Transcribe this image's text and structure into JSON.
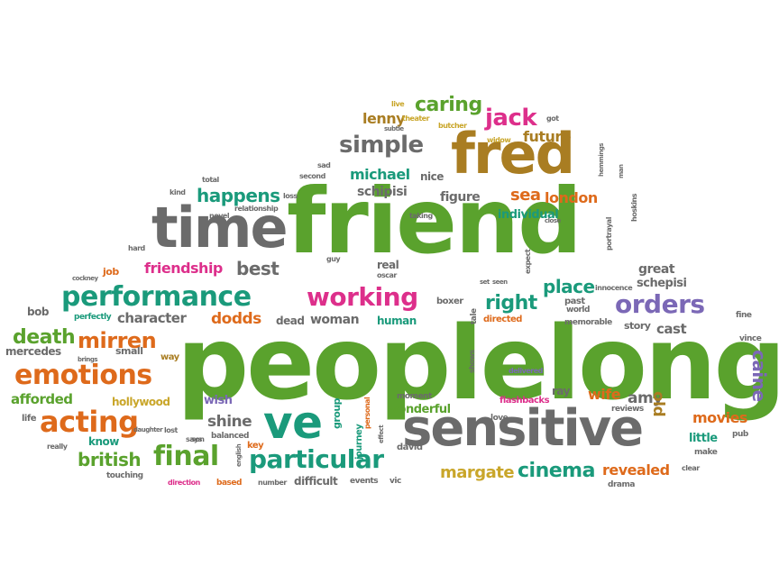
{
  "words": {
    "peoplelong": "peoplelong",
    "friend": "friend",
    "sensitive": "sensitive",
    "time": "time",
    "fred": "fred",
    "ve": "ve",
    "performance": "performance",
    "emotions": "emotions",
    "acting": "acting",
    "working": "working",
    "orders": "orders",
    "final": "final",
    "particular": "particular",
    "simple": "simple",
    "mirren": "mirren",
    "jack": "jack",
    "caring": "caring",
    "caine": "caine",
    "cinema": "cinema",
    "margate": "margate",
    "british": "british",
    "death": "death",
    "mercedes": "mercedes",
    "right": "right",
    "place": "place",
    "michael": "michael",
    "friendship": "friendship",
    "happens": "happens",
    "best": "best",
    "character": "character",
    "dodds": "dodds",
    "woman": "woman",
    "sea": "sea",
    "london": "london",
    "revealed": "revealed",
    "movies": "movies",
    "amy": "amy",
    "wife": "wife",
    "cast": "cast",
    "great": "great",
    "schepisi": "schepisi",
    "schipisi": "schipisi",
    "figure": "figure",
    "individual": "individual",
    "lenny": "lenny",
    "future": "future",
    "shine": "shine",
    "wonderful": "wonderful",
    "afforded": "afforded",
    "hollywood": "hollywood",
    "little": "little",
    "old": "old",
    "difficult": "difficult",
    "human": "human",
    "dead": "dead",
    "wish": "wish",
    "know": "know",
    "real": "real",
    "story": "story",
    "nice": "nice",
    "ray": "ray",
    "bob": "bob",
    "small": "small",
    "perfectly": "perfectly",
    "life": "life",
    "group": "group",
    "journey": "journey",
    "boxer": "boxer",
    "tale": "tale",
    "directed": "directed",
    "past": "past",
    "memorable": "memorable",
    "job": "job",
    "way": "way",
    "flashbacks": "flashbacks",
    "moment": "moment",
    "david": "david",
    "vince": "vince",
    "fine": "fine",
    "key": "key",
    "drama": "drama",
    "events": "events",
    "number": "number",
    "vic": "vic",
    "based": "based",
    "direction": "direction",
    "touching": "touching",
    "really": "really",
    "lost": "lost",
    "balanced": "balanced",
    "son": "son",
    "english": "english",
    "pub": "pub",
    "make": "make",
    "clear": "clear",
    "reviews": "reviews",
    "love": "love",
    "personal": "personal",
    "effect": "effect",
    "shows": "shows",
    "delivered": "delivered",
    "world": "world",
    "innocence": "innocence",
    "portrayal": "portrayal",
    "hoskins": "hoskins",
    "man": "man",
    "hemmings": "hemmings",
    "got": "got",
    "widow": "widow",
    "butcher": "butcher",
    "theater": "theater",
    "subtle": "subtle",
    "live": "live",
    "sad": "sad",
    "second": "second",
    "total": "total",
    "kind": "kind",
    "loss": "loss",
    "relationship": "relationship",
    "novel": "novel",
    "hard": "hard",
    "cockney": "cockney",
    "guy": "guy",
    "oscar": "oscar",
    "taking": "taking",
    "close": "close",
    "expect": "expect",
    "seen": "seen",
    "set": "set",
    "says": "says",
    "daughter": "daughter",
    "brings": "brings"
  }
}
